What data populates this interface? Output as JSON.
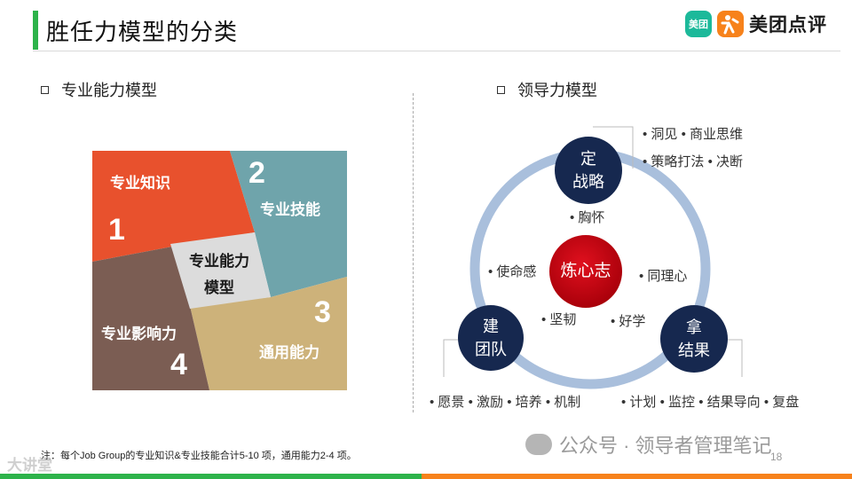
{
  "header": {
    "title": "胜任力模型的分类",
    "logo_badge": "美团",
    "logo_text": "美团点评"
  },
  "sections": {
    "left_heading": "专业能力模型",
    "right_heading": "领导力模型"
  },
  "pro_model": {
    "quadrants": [
      {
        "label": "专业知识",
        "number": "1",
        "color": "#e8512d"
      },
      {
        "label": "专业技能",
        "number": "2",
        "color": "#6fa4ab"
      },
      {
        "label": "通用能力",
        "number": "3",
        "color": "#cdb27a"
      },
      {
        "label": "专业影响力",
        "number": "4",
        "color": "#7b5d53"
      }
    ],
    "center_line1": "专业能力",
    "center_line2": "模型",
    "center_color": "#dcdcdc"
  },
  "leadership": {
    "ring_color": "#a9bfdc",
    "node_color": "#16284f",
    "core_color": "#c2000b",
    "core": "炼心志",
    "top_node": {
      "line1": "定",
      "line2": "战略"
    },
    "left_node": {
      "line1": "建",
      "line2": "团队"
    },
    "right_node": {
      "line1": "拿",
      "line2": "结果"
    },
    "inner_traits": [
      "胸怀",
      "使命感",
      "同理心",
      "坚韧",
      "好学"
    ],
    "strategy_items": [
      "洞见",
      "商业思维",
      "策略打法",
      "决断"
    ],
    "team_items": [
      "愿景",
      "激励",
      "培养",
      "机制"
    ],
    "result_items": [
      "计划",
      "监控",
      "结果导向",
      "复盘"
    ]
  },
  "footer": {
    "note": "注：每个Job Group的专业知识&专业技能合计5-10 项，通用能力2-4 项。",
    "watermark_left": "大讲堂",
    "watermark_right": "公众号 · 领导者管理笔记",
    "page_number": "18"
  }
}
